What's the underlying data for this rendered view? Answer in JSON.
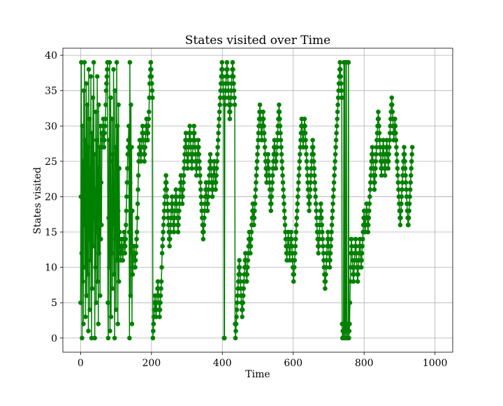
{
  "chart_data": {
    "type": "line",
    "title": "States visited over Time",
    "xlabel": "Time",
    "ylabel": "States visited",
    "xlim": [
      -50,
      1050
    ],
    "ylim": [
      -2,
      41
    ],
    "xticks": [
      0,
      200,
      400,
      600,
      800,
      1000
    ],
    "yticks": [
      0,
      5,
      10,
      15,
      20,
      25,
      30,
      35,
      40
    ],
    "grid": true,
    "marker": "circle",
    "series": [
      {
        "color": "#008000",
        "x_start": 0,
        "x_step": 1,
        "values": [
          5,
          20,
          39,
          12,
          0,
          30,
          8,
          25,
          2,
          35,
          16,
          39,
          10,
          28,
          3,
          22,
          36,
          6,
          18,
          33,
          9,
          27,
          1,
          38,
          14,
          31,
          4,
          24,
          11,
          37,
          19,
          0,
          29,
          7,
          23,
          34,
          13,
          39,
          17,
          26,
          0,
          21,
          10,
          32,
          5,
          28,
          15,
          37,
          8,
          24,
          2,
          33,
          12,
          19,
          27,
          6,
          30,
          14,
          22,
          16,
          29,
          27,
          28,
          30,
          31,
          29,
          27,
          28,
          29,
          30,
          31,
          33,
          35,
          36,
          37,
          38,
          39,
          5,
          0,
          17,
          28,
          10,
          39,
          1,
          25,
          34,
          3,
          20,
          12,
          31,
          7,
          26,
          16,
          38,
          9,
          22,
          0,
          35,
          14,
          27,
          4,
          21,
          39,
          11,
          30,
          2,
          18,
          33,
          8,
          24,
          15,
          13,
          12,
          11,
          12,
          13,
          14,
          13,
          12,
          11,
          12,
          13,
          14,
          15,
          13,
          12,
          13,
          14,
          16,
          18,
          20,
          22,
          24,
          26,
          27,
          28,
          30,
          15,
          0,
          39,
          22,
          6,
          33,
          12,
          27,
          2,
          18,
          9,
          10,
          11,
          12,
          13,
          12,
          11,
          10,
          11,
          12,
          13,
          14,
          15,
          17,
          19,
          21,
          23,
          25,
          26,
          27,
          28,
          27,
          26,
          25,
          26,
          27,
          28,
          29,
          30,
          29,
          28,
          27,
          26,
          25,
          26,
          27,
          28,
          29,
          30,
          31,
          30,
          29,
          28,
          29,
          30,
          31,
          32,
          34,
          36,
          37,
          38,
          39,
          38,
          37,
          36,
          35,
          34,
          0,
          1,
          2,
          3,
          4,
          5,
          6,
          5,
          4,
          3,
          4,
          5,
          6,
          7,
          8,
          7,
          6,
          5,
          4,
          3,
          4,
          5,
          6,
          7,
          8,
          10,
          12,
          13,
          14,
          15,
          16,
          17,
          18,
          19,
          20,
          21,
          22,
          23,
          22,
          21,
          20,
          19,
          18,
          17,
          16,
          15,
          14,
          13,
          14,
          15,
          16,
          17,
          18,
          19,
          20,
          19,
          18,
          17,
          16,
          15,
          16,
          17,
          18,
          19,
          20,
          21,
          20,
          19,
          18,
          17,
          16,
          15,
          16,
          17,
          18,
          19,
          20,
          21,
          22,
          23,
          22,
          21,
          20,
          19,
          20,
          21,
          22,
          23,
          24,
          25,
          26,
          27,
          28,
          29,
          28,
          27,
          26,
          25,
          24,
          25,
          26,
          27,
          28,
          29,
          30,
          29,
          28,
          27,
          26,
          25,
          24,
          25,
          26,
          27,
          28,
          29,
          30,
          29,
          28,
          27,
          26,
          25,
          24,
          23,
          24,
          25,
          26,
          27,
          28,
          27,
          26,
          25,
          24,
          23,
          22,
          21,
          20,
          19,
          18,
          17,
          16,
          15,
          14,
          15,
          16,
          17,
          18,
          19,
          20,
          21,
          22,
          21,
          20,
          19,
          18,
          19,
          20,
          21,
          22,
          23,
          24,
          25,
          26,
          25,
          24,
          23,
          22,
          21,
          20,
          21,
          22,
          23,
          24,
          25,
          24,
          23,
          22,
          21,
          22,
          23,
          24,
          25,
          26,
          27,
          28,
          29,
          30,
          31,
          32,
          33,
          34,
          35,
          36,
          37,
          38,
          39,
          38,
          37,
          36,
          35,
          34,
          0,
          0,
          33,
          34,
          35,
          36,
          37,
          38,
          39,
          38,
          37,
          36,
          35,
          34,
          33,
          32,
          31,
          32,
          33,
          34,
          35,
          36,
          37,
          38,
          39,
          38,
          37,
          36,
          35,
          34,
          33,
          2,
          0,
          1,
          2,
          3,
          4,
          5,
          6,
          7,
          8,
          9,
          10,
          11,
          10,
          9,
          8,
          7,
          6,
          5,
          4,
          3,
          4,
          5,
          6,
          7,
          8,
          9,
          10,
          11,
          12,
          11,
          10,
          9,
          8,
          9,
          10,
          11,
          12,
          13,
          14,
          15,
          14,
          13,
          12,
          13,
          14,
          15,
          16,
          17,
          18,
          19,
          18,
          17,
          16,
          17,
          18,
          19,
          20,
          21,
          22,
          23,
          24,
          25,
          26,
          27,
          28,
          29,
          30,
          31,
          32,
          33,
          32,
          31,
          30,
          29,
          28,
          29,
          30,
          31,
          32,
          31,
          30,
          29,
          28,
          27,
          26,
          25,
          24,
          23,
          22,
          23,
          24,
          25,
          26,
          25,
          24,
          23,
          22,
          21,
          20,
          19,
          18,
          19,
          20,
          21,
          22,
          23,
          24,
          25,
          26,
          27,
          28,
          27,
          26,
          25,
          24,
          25,
          26,
          27,
          28,
          29,
          30,
          31,
          32,
          33,
          32,
          31,
          30,
          29,
          28,
          27,
          26,
          25,
          24,
          23,
          22,
          21,
          20,
          19,
          18,
          17,
          16,
          15,
          14,
          13,
          12,
          11,
          12,
          13,
          14,
          15,
          14,
          13,
          12,
          11,
          12,
          13,
          14,
          15,
          14,
          13,
          12,
          11,
          10,
          9,
          8,
          9,
          10,
          11,
          12,
          13,
          14,
          15,
          16,
          17,
          18,
          19,
          20,
          21,
          22,
          23,
          24,
          25,
          26,
          27,
          28,
          29,
          30,
          31,
          30,
          29,
          28,
          27,
          28,
          29,
          30,
          31,
          30,
          29,
          28,
          27,
          26,
          25,
          24,
          23,
          22,
          21,
          20,
          19,
          18,
          19,
          20,
          21,
          22,
          23,
          24,
          25,
          26,
          27,
          28,
          27,
          26,
          25,
          24,
          23,
          22,
          21,
          20,
          19,
          18,
          17,
          16,
          15,
          14,
          13,
          12,
          13,
          14,
          15,
          16,
          17,
          18,
          19,
          18,
          17,
          16,
          15,
          14,
          13,
          12,
          11,
          10,
          9,
          8,
          7,
          8,
          9,
          10,
          11,
          12,
          13,
          14,
          15,
          14,
          13,
          12,
          11,
          10,
          11,
          12,
          13,
          14,
          15,
          16,
          17,
          18,
          19,
          20,
          21,
          22,
          23,
          24,
          25,
          26,
          27,
          28,
          29,
          30,
          31,
          32,
          33,
          34,
          35,
          36,
          37,
          38,
          39,
          38,
          37,
          36,
          35,
          34,
          2,
          0,
          1,
          0,
          2,
          39,
          1,
          0,
          39,
          2,
          1,
          0,
          39,
          2,
          1,
          0,
          1,
          2,
          39,
          0,
          1,
          2,
          5,
          8,
          10,
          12,
          14,
          13,
          12,
          11,
          10,
          9,
          8,
          9,
          10,
          11,
          12,
          13,
          14,
          13,
          12,
          11,
          10,
          9,
          8,
          9,
          10,
          11,
          12,
          13,
          14,
          13,
          12,
          11,
          10,
          11,
          12,
          13,
          14,
          15,
          16,
          17,
          18,
          17,
          16,
          15,
          16,
          17,
          18,
          19,
          18,
          17,
          16,
          15,
          16,
          17,
          18,
          19,
          20,
          21,
          22,
          23,
          24,
          25,
          26,
          27,
          26,
          25,
          24,
          23,
          22,
          21,
          22,
          23,
          24,
          25,
          26,
          27,
          28,
          29,
          30,
          31,
          32,
          31,
          30,
          29,
          28,
          27,
          26,
          25,
          24,
          23,
          24,
          25,
          26,
          27,
          28,
          27,
          26,
          25,
          24,
          23,
          24,
          25,
          26,
          27,
          28,
          27,
          26,
          25,
          24,
          25,
          26,
          27,
          28,
          29,
          30,
          31,
          32,
          33,
          34,
          33,
          32,
          31,
          30,
          29,
          28,
          29,
          30,
          31,
          30,
          29,
          28,
          27,
          26,
          25,
          24,
          23,
          22,
          21,
          20,
          19,
          18,
          17,
          16,
          17,
          18,
          19,
          20,
          21,
          22,
          23,
          24,
          25,
          26,
          27,
          26,
          25,
          24,
          23,
          22,
          21,
          20,
          19,
          18,
          17,
          16,
          16,
          17,
          18,
          19,
          20,
          21,
          22,
          23,
          24,
          25,
          26,
          27
        ]
      }
    ]
  }
}
